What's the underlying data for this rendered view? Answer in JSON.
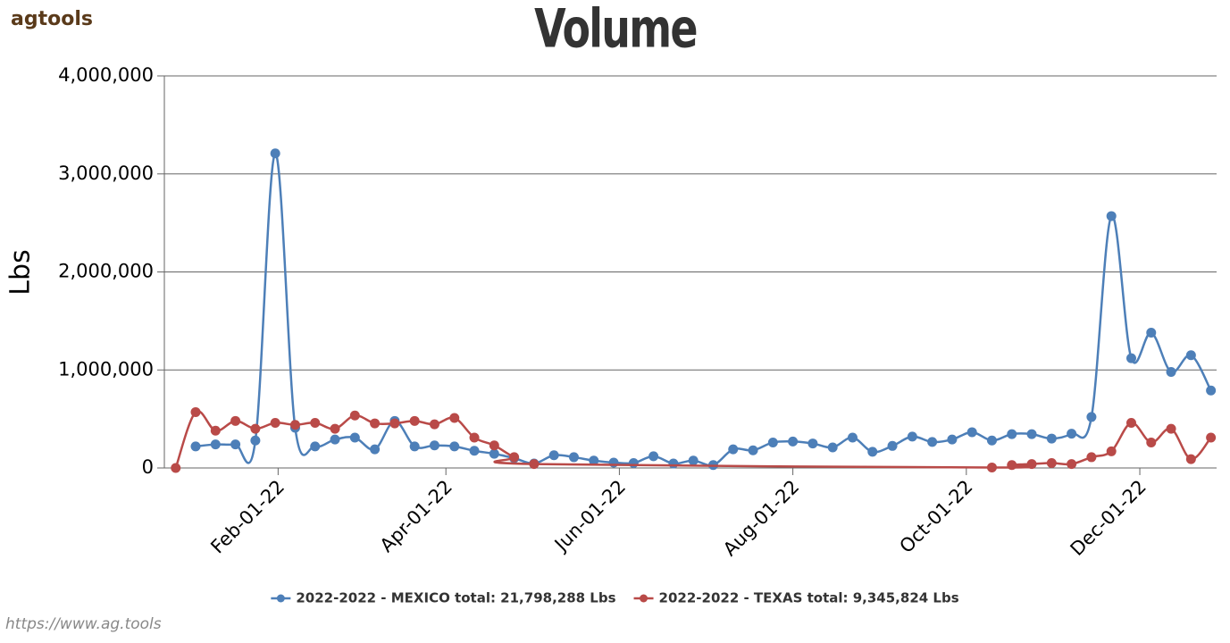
{
  "logo": "agtools",
  "footer": "https://www.ag.tools",
  "chart_data": {
    "type": "line",
    "title": "Volume",
    "y_label": "Lbs",
    "smooth": true,
    "grid": true,
    "ylim": [
      0,
      4000000
    ],
    "yticks": [
      0,
      {
        "value": 1000000,
        "label": "1,000,000"
      },
      {
        "value": 2000000,
        "label": "2,000,000"
      },
      {
        "value": 3000000,
        "label": "3,000,000"
      },
      {
        "value": 4000000,
        "label": "4,000,000"
      }
    ],
    "xlim": [
      "2021-12-23",
      "2022-12-28"
    ],
    "xticks": [
      {
        "value": "2022-02-01",
        "label": "Feb-01-22"
      },
      {
        "value": "2022-04-01",
        "label": "Apr-01-22"
      },
      {
        "value": "2022-06-01",
        "label": "Jun-01-22"
      },
      {
        "value": "2022-08-01",
        "label": "Aug-01-22"
      },
      {
        "value": "2022-10-01",
        "label": "Oct-01-22"
      },
      {
        "value": "2022-12-01",
        "label": "Dec-01-22"
      }
    ],
    "series": [
      {
        "name": "2022-2022 - MEXICO total: 21,798,288 Lbs",
        "color": "#4d7fb8",
        "x": [
          "2022-01-03",
          "2022-01-10",
          "2022-01-17",
          "2022-01-24",
          "2022-01-31",
          "2022-02-07",
          "2022-02-14",
          "2022-02-21",
          "2022-02-28",
          "2022-03-07",
          "2022-03-14",
          "2022-03-21",
          "2022-03-28",
          "2022-04-04",
          "2022-04-11",
          "2022-04-18",
          "2022-04-25",
          "2022-05-02",
          "2022-05-09",
          "2022-05-16",
          "2022-05-23",
          "2022-05-30",
          "2022-06-06",
          "2022-06-13",
          "2022-06-20",
          "2022-06-27",
          "2022-07-04",
          "2022-07-11",
          "2022-07-18",
          "2022-07-25",
          "2022-08-01",
          "2022-08-08",
          "2022-08-15",
          "2022-08-22",
          "2022-08-29",
          "2022-09-05",
          "2022-09-12",
          "2022-09-19",
          "2022-09-26",
          "2022-10-03",
          "2022-10-10",
          "2022-10-17",
          "2022-10-24",
          "2022-10-31",
          "2022-11-07",
          "2022-11-14",
          "2022-11-21",
          "2022-11-28",
          "2022-12-05",
          "2022-12-12",
          "2022-12-19",
          "2022-12-26"
        ],
        "values": [
          220000,
          240000,
          240000,
          280000,
          3210000,
          410000,
          220000,
          290000,
          310000,
          190000,
          480000,
          220000,
          230000,
          220000,
          175000,
          145000,
          100000,
          45000,
          130000,
          110000,
          75000,
          55000,
          50000,
          120000,
          45000,
          75000,
          30000,
          190000,
          180000,
          260000,
          270000,
          250000,
          210000,
          310000,
          165000,
          225000,
          320000,
          265000,
          290000,
          365000,
          280000,
          345000,
          345000,
          300000,
          350000,
          520000,
          2570000,
          1120000,
          1380000,
          980000,
          1150000,
          790000
        ]
      },
      {
        "name": "2022-2022 - TEXAS total: 9,345,824 Lbs",
        "color": "#b94a48",
        "x": [
          "2021-12-27",
          "2022-01-03",
          "2022-01-10",
          "2022-01-17",
          "2022-01-24",
          "2022-01-31",
          "2022-02-07",
          "2022-02-14",
          "2022-02-21",
          "2022-02-28",
          "2022-03-07",
          "2022-03-14",
          "2022-03-21",
          "2022-03-28",
          "2022-04-04",
          "2022-04-11",
          "2022-04-18",
          "2022-04-25",
          "2022-05-02",
          "2022-10-10",
          "2022-10-17",
          "2022-10-24",
          "2022-10-31",
          "2022-11-07",
          "2022-11-14",
          "2022-11-21",
          "2022-11-28",
          "2022-12-05",
          "2022-12-12",
          "2022-12-19",
          "2022-12-26"
        ],
        "values": [
          0,
          570000,
          380000,
          480000,
          400000,
          460000,
          440000,
          460000,
          400000,
          535000,
          455000,
          455000,
          480000,
          445000,
          510000,
          310000,
          230000,
          110000,
          40000,
          5000,
          30000,
          40000,
          50000,
          40000,
          110000,
          170000,
          460000,
          260000,
          400000,
          90000,
          310000
        ]
      }
    ]
  }
}
